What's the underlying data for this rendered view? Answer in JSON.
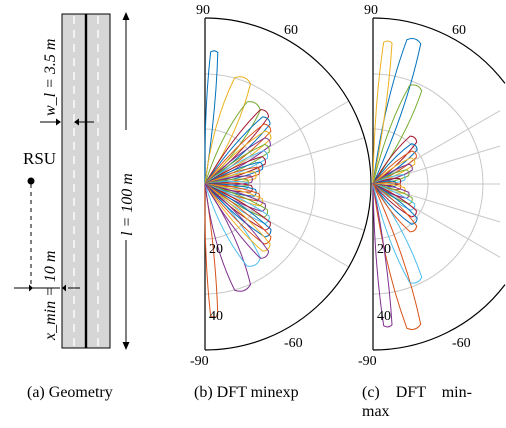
{
  "geometry": {
    "rsu_label": "RSU",
    "lane_width_label": "w_l = 3.5 m",
    "length_label": "l = 100 m",
    "xmin_label": "x_min = 10 m"
  },
  "polar_axes": {
    "outer_labels": [
      "90",
      "60",
      "-60",
      "-90"
    ],
    "inner_labels": [
      "20",
      "40"
    ]
  },
  "captions": {
    "a": "(a) Geometry",
    "b": "(b) DFT minexp",
    "c1": "(c)    DFT    min-",
    "c2": "max"
  },
  "colors": {
    "lane": "#d6d6d6",
    "grid": "#c8c8c8",
    "beams": [
      "#0072bd",
      "#d95319",
      "#edb120",
      "#7e2f8e",
      "#77ac30",
      "#4dbeee",
      "#a2142f"
    ]
  }
}
